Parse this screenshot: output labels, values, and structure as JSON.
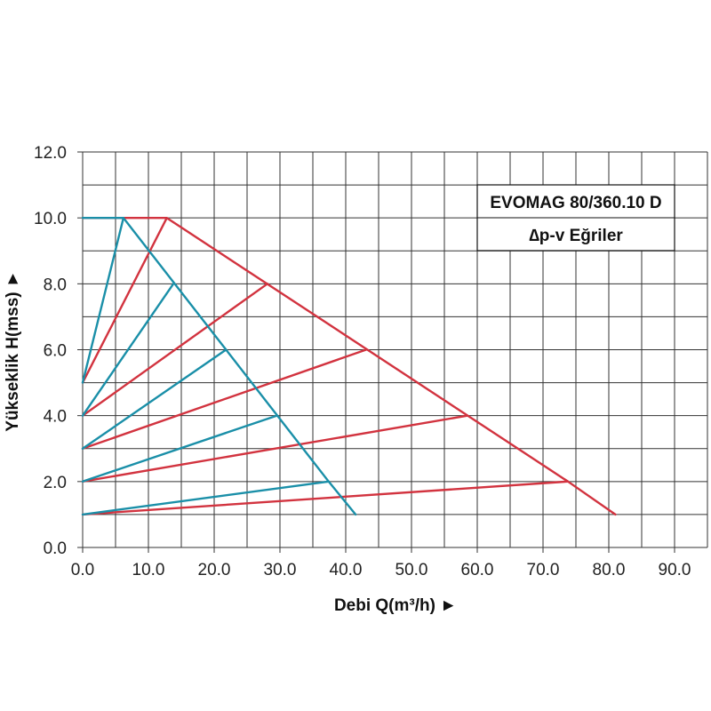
{
  "chart_data": {
    "type": "line",
    "title": "",
    "legend_box": {
      "line1": "EVOMAG 80/360.10 D",
      "line2": "∆p-v Eğriler",
      "placement": "top-right"
    },
    "xlabel": "Debi Q(m³/h) ►",
    "ylabel": "Yükseklik H(mss) ►",
    "xlim": [
      0,
      95
    ],
    "ylim": [
      0,
      12
    ],
    "x_ticks": [
      "0.0",
      "10.0",
      "20.0",
      "30.0",
      "40.0",
      "50.0",
      "60.0",
      "70.0",
      "80.0",
      "90.0"
    ],
    "y_ticks": [
      "0.0",
      "2.0",
      "4.0",
      "6.0",
      "8.0",
      "10.0",
      "12.0"
    ],
    "x_tick_values": [
      0,
      10,
      20,
      30,
      40,
      50,
      60,
      70,
      80,
      90
    ],
    "y_tick_values": [
      0,
      2,
      4,
      6,
      8,
      10,
      12
    ],
    "grid": true,
    "colors": {
      "red": "#d2333f",
      "blue": "#1a8fa8",
      "grid": "#333333"
    },
    "series": [
      {
        "color": "red",
        "points": [
          [
            0,
            10
          ],
          [
            12.8,
            10
          ],
          [
            73.8,
            2
          ],
          [
            81,
            1
          ]
        ]
      },
      {
        "color": "red",
        "points": [
          [
            0,
            5
          ],
          [
            12.8,
            10
          ]
        ]
      },
      {
        "color": "red",
        "points": [
          [
            0,
            4
          ],
          [
            28.1,
            8
          ]
        ]
      },
      {
        "color": "red",
        "points": [
          [
            0,
            3
          ],
          [
            43.1,
            6
          ]
        ]
      },
      {
        "color": "red",
        "points": [
          [
            0,
            2
          ],
          [
            58.5,
            4
          ]
        ]
      },
      {
        "color": "red",
        "points": [
          [
            0,
            1
          ],
          [
            73.8,
            2
          ]
        ]
      },
      {
        "color": "blue",
        "points": [
          [
            0,
            10
          ],
          [
            6.2,
            10
          ],
          [
            37.4,
            2
          ],
          [
            41.5,
            1
          ]
        ]
      },
      {
        "color": "blue",
        "points": [
          [
            0,
            5
          ],
          [
            6.2,
            10
          ]
        ]
      },
      {
        "color": "blue",
        "points": [
          [
            0,
            4
          ],
          [
            13.8,
            8
          ]
        ]
      },
      {
        "color": "blue",
        "points": [
          [
            0,
            3
          ],
          [
            21.8,
            6
          ]
        ]
      },
      {
        "color": "blue",
        "points": [
          [
            0,
            2
          ],
          [
            29.5,
            4
          ]
        ]
      },
      {
        "color": "blue",
        "points": [
          [
            0,
            1
          ],
          [
            37.4,
            2
          ]
        ]
      }
    ]
  }
}
